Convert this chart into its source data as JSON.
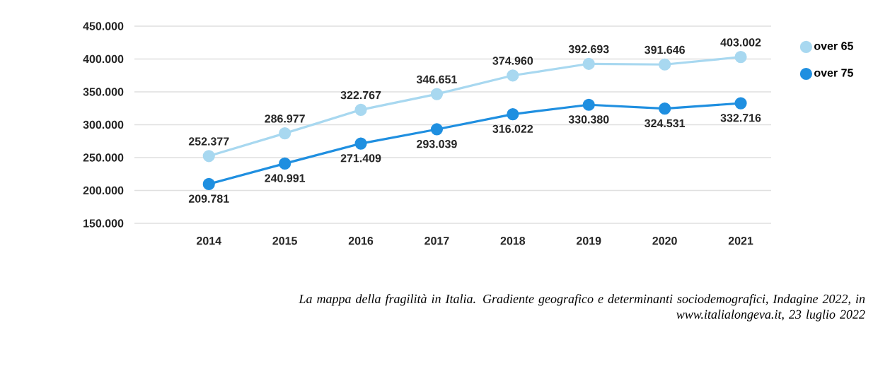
{
  "chart_data": {
    "type": "line",
    "categories": [
      "2014",
      "2015",
      "2016",
      "2017",
      "2018",
      "2019",
      "2020",
      "2021"
    ],
    "series": [
      {
        "name": "over 65",
        "color": "#a8d8f0",
        "values": [
          252377,
          286977,
          322767,
          346651,
          374960,
          392693,
          391646,
          403002
        ],
        "value_labels": [
          "252.377",
          "286.977",
          "322.767",
          "346.651",
          "374.960",
          "392.693",
          "391.646",
          "403.002"
        ]
      },
      {
        "name": "over 75",
        "color": "#1f8fe0",
        "values": [
          209781,
          240991,
          271409,
          293039,
          316022,
          330380,
          324531,
          332716
        ],
        "value_labels": [
          "209.781",
          "240.991",
          "271.409",
          "293.039",
          "316.022",
          "330.380",
          "324.531",
          "332.716"
        ]
      }
    ],
    "ylim": [
      150000,
      450000
    ],
    "yticks": [
      {
        "value": 150000,
        "label": "150.000"
      },
      {
        "value": 200000,
        "label": "200.000"
      },
      {
        "value": 250000,
        "label": "250.000"
      },
      {
        "value": 300000,
        "label": "300.000"
      },
      {
        "value": 350000,
        "label": "350.000"
      },
      {
        "value": 400000,
        "label": "400.000"
      },
      {
        "value": 450000,
        "label": "450.000"
      }
    ],
    "grid": "y",
    "legend": "top right",
    "marker": "circle",
    "line_style": "solid",
    "annotations": [
      "La mappa della fragilità in Italia. Gradiente geografico e determinanti sociodemografici, Indagine 2022, in www.italialongeva.it, 23 luglio 2022"
    ]
  }
}
